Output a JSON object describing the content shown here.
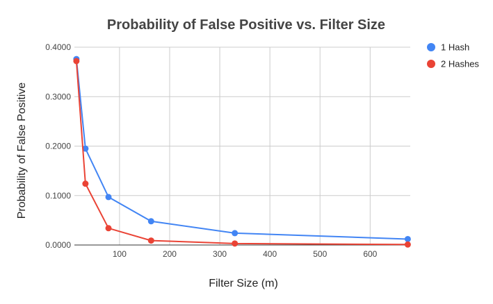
{
  "chart_data": {
    "type": "line",
    "title": "Probability of False Positive vs. Filter Size",
    "xlabel": "Filter Size (m)",
    "ylabel": "Probability of False Positive",
    "xlim": [
      10,
      680
    ],
    "ylim": [
      0,
      0.4
    ],
    "x_ticks": [
      100,
      200,
      300,
      400,
      500,
      600
    ],
    "x_tick_labels": [
      "100",
      "200",
      "300",
      "400",
      "500",
      "600"
    ],
    "y_ticks": [
      0,
      0.1,
      0.2,
      0.3,
      0.4
    ],
    "y_tick_labels": [
      "0.0000",
      "0.1000",
      "0.2000",
      "0.3000",
      "0.4000"
    ],
    "grid": true,
    "legend_position": "right",
    "series": [
      {
        "name": "1 Hash",
        "color": "#4285f4",
        "x": [
          14,
          32,
          78,
          163,
          330,
          675
        ],
        "y": [
          0.376,
          0.195,
          0.097,
          0.048,
          0.024,
          0.012
        ]
      },
      {
        "name": "2 Hashes",
        "color": "#ea4335",
        "x": [
          14,
          32,
          78,
          163,
          330,
          675
        ],
        "y": [
          0.372,
          0.124,
          0.034,
          0.009,
          0.003,
          0.001
        ]
      }
    ]
  }
}
